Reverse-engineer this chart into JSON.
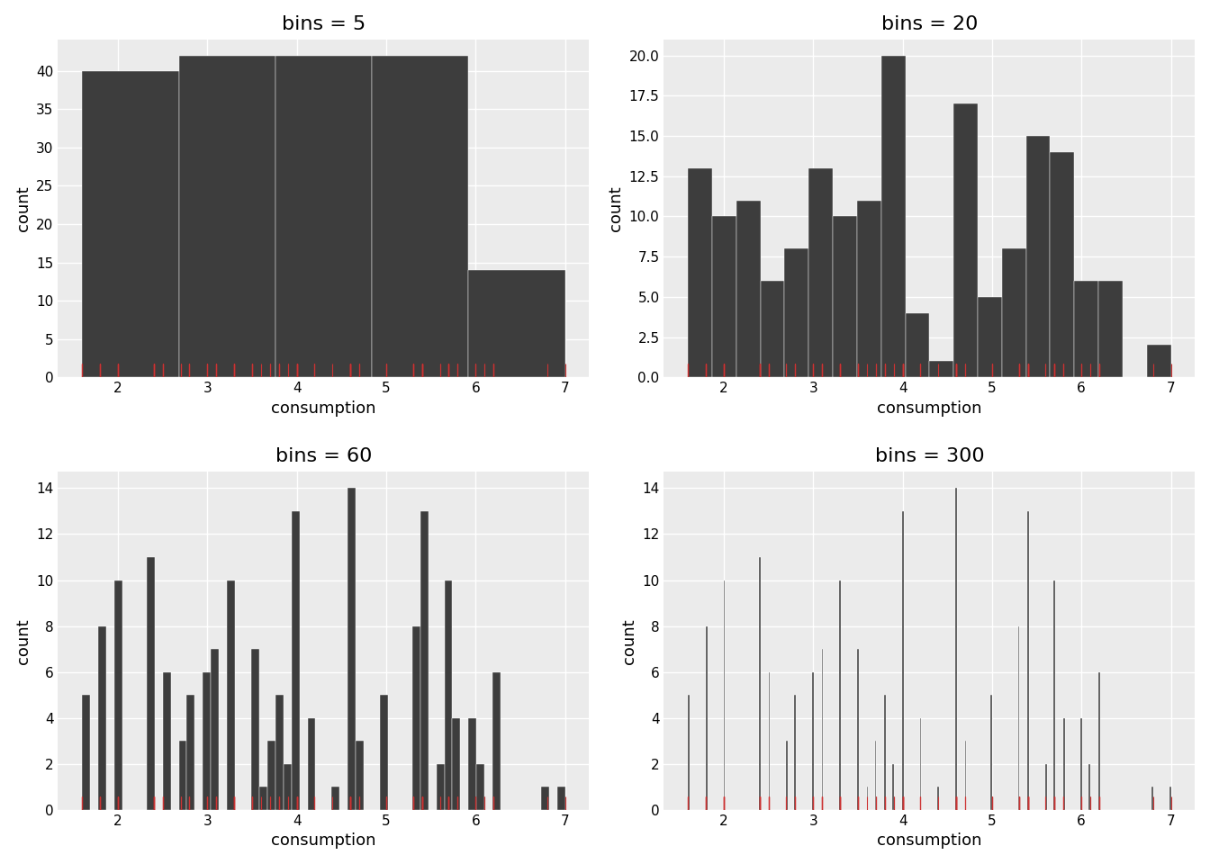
{
  "bins_list": [
    5,
    20,
    60,
    300
  ],
  "titles": [
    "bins = 5",
    "bins = 20",
    "bins = 60",
    "bins = 300"
  ],
  "bar_color": "#3d3d3d",
  "rug_color": "#cc3333",
  "background_color": "#ebebeb",
  "grid_color": "#ffffff",
  "xlabel": "consumption",
  "ylabel": "count",
  "title_fontsize": 16,
  "axis_label_fontsize": 13,
  "tick_fontsize": 11,
  "rug_linewidth": 0.8,
  "figsize": [
    13.44,
    9.6
  ],
  "dpi": 100,
  "consumption": [
    1.8,
    1.8,
    2.0,
    2.0,
    2.8,
    2.8,
    3.1,
    1.8,
    1.8,
    2.0,
    2.0,
    2.8,
    2.8,
    3.1,
    3.1,
    2.8,
    3.1,
    4.2,
    5.3,
    5.3,
    5.3,
    5.7,
    6.0,
    5.3,
    5.3,
    5.7,
    6.2,
    5.7,
    5.3,
    5.3,
    6.2,
    5.7,
    5.7,
    6.2,
    5.7,
    5.3,
    2.4,
    2.4,
    3.1,
    3.5,
    3.6,
    2.4,
    3.0,
    3.3,
    3.3,
    3.3,
    3.3,
    3.3,
    3.8,
    3.8,
    3.8,
    4.0,
    3.7,
    3.7,
    3.9,
    3.9,
    4.6,
    4.6,
    4.6,
    4.6,
    5.4,
    5.4,
    5.4,
    4.0,
    4.0,
    4.0,
    4.0,
    4.6,
    5.0,
    4.2,
    4.2,
    4.6,
    4.6,
    4.6,
    5.4,
    5.4,
    3.8,
    3.8,
    4.0,
    4.0,
    4.6,
    4.6,
    5.4,
    1.6,
    1.6,
    1.6,
    1.6,
    1.6,
    1.8,
    1.8,
    1.8,
    2.0,
    2.4,
    2.4,
    2.4,
    2.4,
    2.5,
    2.5,
    3.3,
    2.0,
    2.0,
    2.0,
    2.0,
    2.7,
    2.7,
    2.7,
    3.0,
    3.7,
    4.0,
    4.7,
    4.7,
    4.7,
    5.7,
    6.1,
    4.0,
    4.2,
    4.4,
    4.6,
    5.4,
    5.4,
    5.4,
    4.0,
    4.0,
    4.6,
    5.0,
    2.4,
    2.4,
    2.5,
    2.5,
    3.5,
    3.5,
    3.0,
    3.0,
    3.5,
    3.3,
    3.3,
    4.0,
    5.6,
    3.1,
    1.8,
    2.0,
    2.4,
    5.0,
    2.4,
    2.5,
    2.5,
    3.5,
    3.5,
    3.0,
    3.0,
    3.5,
    3.3,
    3.3,
    4.0,
    5.6,
    3.1,
    6.2,
    5.7,
    5.7,
    4.6,
    6.1,
    5.4,
    5.4,
    5.4,
    5.8,
    5.8,
    4.6,
    5.7,
    6.2,
    6.2,
    5.4,
    5.0,
    5.0,
    7.0,
    5.8,
    5.8,
    6.8,
    6.0,
    6.0,
    6.0
  ]
}
